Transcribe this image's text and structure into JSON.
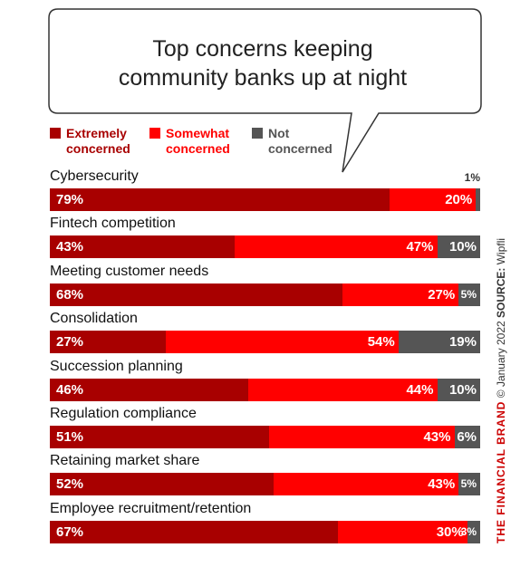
{
  "chart_data": {
    "type": "bar",
    "orientation": "horizontal",
    "stacked": true,
    "title": [
      "Top concerns keeping",
      "community banks up at night"
    ],
    "legend_position": "top-left",
    "categories": [
      "Cybersecurity",
      "Fintech competition",
      "Meeting customer needs",
      "Consolidation",
      "Succession planning",
      "Regulation compliance",
      "Retaining market share",
      "Employee recruitment/retention"
    ],
    "series": [
      {
        "name": "Extremely concerned",
        "color": "#a80000",
        "values": [
          79,
          43,
          68,
          27,
          46,
          51,
          52,
          67
        ]
      },
      {
        "name": "Somewhat concerned",
        "color": "#ff0000",
        "values": [
          20,
          47,
          27,
          54,
          44,
          43,
          43,
          30
        ]
      },
      {
        "name": "Not concerned",
        "color": "#555555",
        "values": [
          1,
          10,
          5,
          19,
          10,
          6,
          5,
          3
        ]
      }
    ],
    "value_suffix": "%",
    "xlim": [
      0,
      100
    ]
  },
  "legend": [
    {
      "line1": "Extremely",
      "line2": "concerned",
      "color": "#a80000"
    },
    {
      "line1": "Somewhat",
      "line2": "concerned",
      "color": "#ff0000"
    },
    {
      "line1": "Not",
      "line2": "concerned",
      "color": "#555555"
    }
  ],
  "footer": {
    "brand": "THE FINANCIAL BRAND",
    "copyright": " © January 2022 ",
    "source_label": "SOURCE:",
    "source": " Wipfli"
  }
}
